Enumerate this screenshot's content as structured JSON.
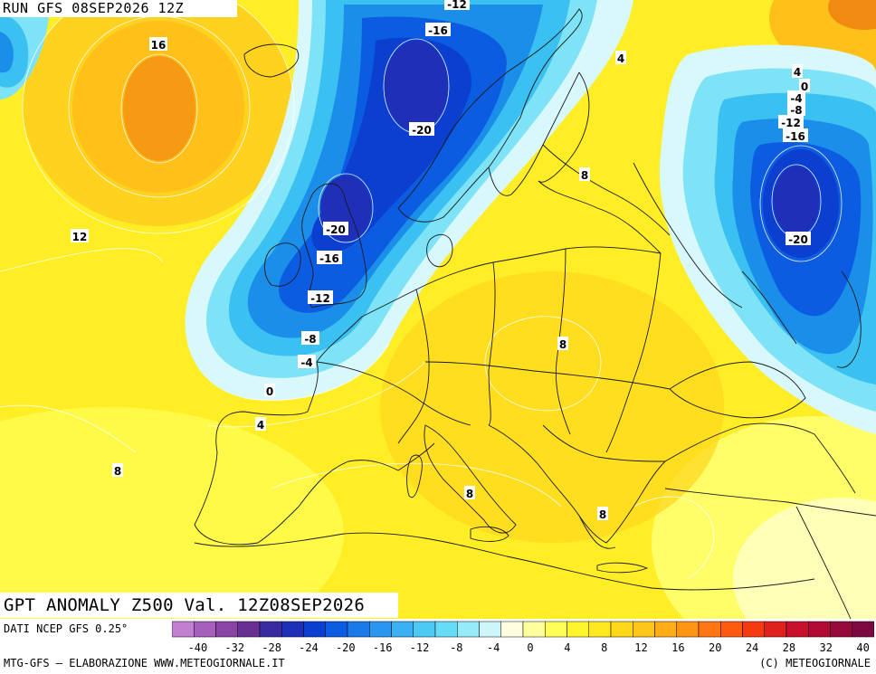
{
  "header": {
    "run_label": "RUN GFS 08SEP2026 12Z"
  },
  "map_title": "GPT ANOMALY Z500 Val. 12Z08SEP2026",
  "footer": {
    "source": "DATI NCEP GFS 0.25°",
    "credit_left": "MTG-GFS – ELABORAZIONE WWW.METEOGIORNALE.IT",
    "credit_right": "(C) METEOGIORNALE"
  },
  "legend": {
    "tick_labels": [
      "-40",
      "-32",
      "-28",
      "-24",
      "-20",
      "-16",
      "-12",
      "-8",
      "-4",
      "0",
      "4",
      "8",
      "12",
      "16",
      "20",
      "24",
      "28",
      "32",
      "40"
    ],
    "colors": [
      "#c27fd2",
      "#a65fbc",
      "#8a44a6",
      "#6a2f95",
      "#3a2aa0",
      "#1f2fb8",
      "#0a3fd0",
      "#0b5ce0",
      "#1a7ae8",
      "#2b96ee",
      "#3bb0f2",
      "#4ccaf4",
      "#66dcf6",
      "#95ebf8",
      "#cdf6fb",
      "#ffffe0",
      "#ffff9e",
      "#ffff55",
      "#fff52a",
      "#ffe81f",
      "#ffd81a",
      "#ffc519",
      "#ffad17",
      "#ff9415",
      "#ff7712",
      "#ff5a10",
      "#f53a10",
      "#e0201a",
      "#c8102a",
      "#b00a35",
      "#960a3c",
      "#7a0a40"
    ]
  },
  "contour_labels": [
    {
      "text": "16"
    },
    {
      "text": "12"
    },
    {
      "text": "-12"
    },
    {
      "text": "-16"
    },
    {
      "text": "-20"
    },
    {
      "text": "4"
    },
    {
      "text": "-20"
    },
    {
      "text": "-16"
    },
    {
      "text": "-12"
    },
    {
      "text": "-8"
    },
    {
      "text": "-4"
    },
    {
      "text": "0"
    },
    {
      "text": "4"
    },
    {
      "text": "8"
    },
    {
      "text": "8"
    },
    {
      "text": "8"
    },
    {
      "text": "8"
    },
    {
      "text": "8"
    },
    {
      "text": "4"
    },
    {
      "text": "0"
    },
    {
      "text": "-4"
    },
    {
      "text": "-8"
    },
    {
      "text": "-12"
    },
    {
      "text": "-16"
    },
    {
      "text": "-20"
    }
  ]
}
